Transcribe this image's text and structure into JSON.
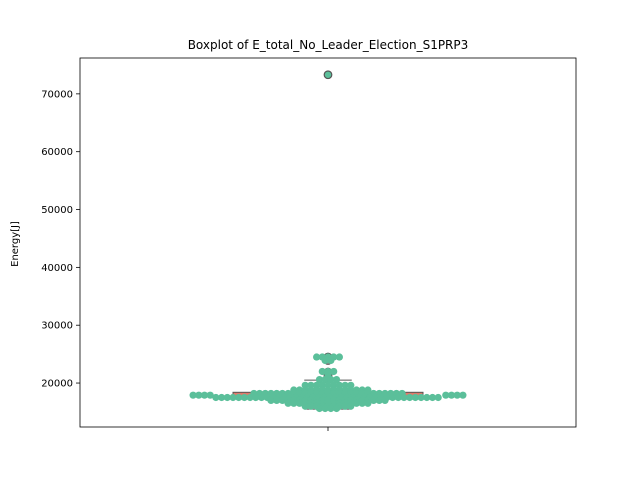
{
  "chart_data": {
    "type": "box",
    "title": "Boxplot of E_total_No_Leader_Election_S1PRP3",
    "xlabel": "",
    "ylabel": "Energy[J]",
    "ylim": [
      12400,
      76200
    ],
    "yticks": [
      20000,
      30000,
      40000,
      50000,
      60000,
      70000
    ],
    "ytick_labels": [
      "20000",
      "30000",
      "40000",
      "50000",
      "60000",
      "70000"
    ],
    "grid": false,
    "box": {
      "min": 15500,
      "q1": 17250,
      "median": 17700,
      "q3": 18400,
      "max": 20500,
      "outliers": [
        73300,
        24500,
        24100,
        23900,
        21900,
        21600,
        21300
      ],
      "box_color": "#e07a6b",
      "line_color": "#555555"
    },
    "swarm": {
      "color": "#5bbf9a",
      "rows": [
        {
          "y": 73300,
          "offsets": [
            0
          ]
        },
        {
          "y": 24500,
          "offsets": [
            -0.12,
            -0.06,
            0,
            0.06,
            0.12
          ]
        },
        {
          "y": 23900,
          "offsets": [
            -0.03,
            0.03
          ]
        },
        {
          "y": 22000,
          "offsets": [
            -0.06,
            0,
            0.06
          ]
        },
        {
          "y": 21500,
          "offsets": [
            0
          ]
        },
        {
          "y": 20600,
          "offsets": [
            -0.09,
            -0.03,
            0.03,
            0.09
          ]
        },
        {
          "y": 19600,
          "offsets": [
            -0.24,
            -0.18,
            -0.12,
            -0.06,
            0,
            0.06,
            0.12,
            0.18,
            0.24
          ]
        },
        {
          "y": 18800,
          "offsets": [
            -0.36,
            -0.3,
            -0.24,
            -0.18,
            -0.12,
            -0.06,
            0,
            0.06,
            0.12,
            0.18,
            0.24,
            0.3,
            0.36,
            0.42
          ]
        },
        {
          "y": 18200,
          "offsets": [
            -0.78,
            -0.72,
            -0.66,
            -0.6,
            -0.54,
            -0.48,
            -0.42,
            -0.36,
            -0.3,
            -0.24,
            -0.18,
            -0.12,
            -0.06,
            0,
            0.06,
            0.12,
            0.18,
            0.24,
            0.3,
            0.36,
            0.42,
            0.48,
            0.54,
            0.6,
            0.66,
            0.72,
            0.78
          ]
        },
        {
          "y": 17900,
          "offsets": [
            -1.42,
            -1.36,
            -1.3,
            -1.24,
            1.24,
            1.3,
            1.36,
            1.42
          ]
        },
        {
          "y": 17500,
          "offsets": [
            -1.18,
            -1.12,
            -1.06,
            -1.0,
            -0.94,
            -0.88,
            -0.82,
            -0.76,
            -0.7,
            -0.64,
            -0.58,
            -0.52,
            -0.46,
            -0.4,
            -0.34,
            -0.28,
            -0.22,
            -0.16,
            -0.1,
            -0.04,
            0.02,
            0.08,
            0.14,
            0.2,
            0.26,
            0.32,
            0.38,
            0.44,
            0.5,
            0.56,
            0.62,
            0.68,
            0.74,
            0.8,
            0.86,
            0.92,
            0.98,
            1.04,
            1.1,
            1.16
          ]
        },
        {
          "y": 17000,
          "offsets": [
            -0.6,
            -0.54,
            -0.48,
            -0.42,
            -0.36,
            -0.3,
            -0.24,
            -0.18,
            -0.12,
            -0.06,
            0,
            0.06,
            0.12,
            0.18,
            0.24,
            0.3,
            0.36,
            0.42,
            0.48,
            0.54,
            0.6
          ]
        },
        {
          "y": 16500,
          "offsets": [
            -0.42,
            -0.36,
            -0.3,
            -0.24,
            -0.18,
            -0.12,
            -0.06,
            0,
            0.06,
            0.12,
            0.18,
            0.24,
            0.3,
            0.36,
            0.42
          ]
        },
        {
          "y": 16000,
          "offsets": [
            -0.24,
            -0.18,
            -0.12,
            -0.06,
            0,
            0.06,
            0.12,
            0.18,
            0.24
          ]
        },
        {
          "y": 15600,
          "offsets": [
            -0.09,
            -0.03,
            0.03,
            0.09
          ]
        }
      ]
    }
  }
}
